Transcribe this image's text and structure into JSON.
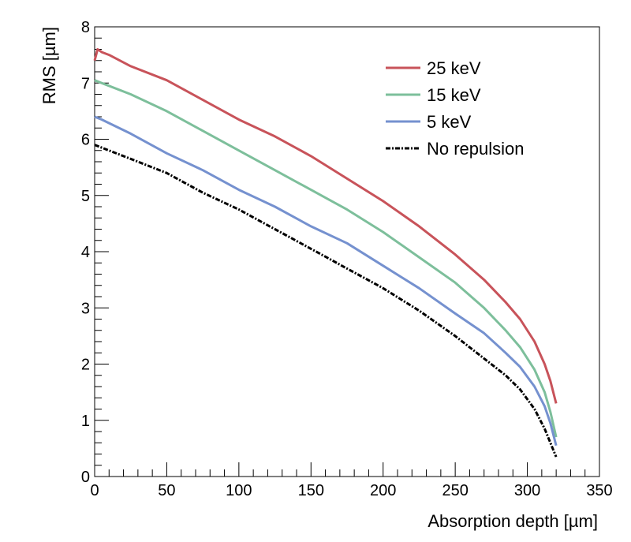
{
  "chart_data": {
    "type": "line",
    "title": "",
    "xlabel": "Absorption depth [µm]",
    "ylabel": "RMS [µm]",
    "xlim": [
      0,
      350
    ],
    "ylim": [
      0,
      8
    ],
    "xticks": [
      0,
      50,
      100,
      150,
      200,
      250,
      300,
      350
    ],
    "xtick_labels": [
      "0",
      "50",
      "100",
      "150",
      "200",
      "250",
      "300",
      "350"
    ],
    "yticks": [
      0,
      1,
      2,
      3,
      4,
      5,
      6,
      7,
      8
    ],
    "ytick_labels": [
      "0",
      "1",
      "2",
      "3",
      "4",
      "5",
      "6",
      "7",
      "8"
    ],
    "grid": false,
    "legend_position": "top-right",
    "series": [
      {
        "name": "25 keV",
        "color": "#c8535a",
        "style": "solid",
        "x": [
          0,
          2,
          5,
          10,
          25,
          50,
          75,
          100,
          125,
          150,
          175,
          200,
          225,
          250,
          270,
          285,
          295,
          305,
          312,
          316,
          320
        ],
        "y": [
          7.4,
          7.6,
          7.55,
          7.5,
          7.3,
          7.05,
          6.7,
          6.35,
          6.05,
          5.7,
          5.3,
          4.9,
          4.45,
          3.95,
          3.5,
          3.1,
          2.8,
          2.4,
          2.0,
          1.7,
          1.3
        ]
      },
      {
        "name": "15 keV",
        "color": "#7dbf9b",
        "style": "solid",
        "x": [
          0,
          5,
          25,
          50,
          75,
          100,
          125,
          150,
          175,
          200,
          225,
          250,
          270,
          285,
          295,
          305,
          312,
          316,
          320
        ],
        "y": [
          7.05,
          7.0,
          6.8,
          6.5,
          6.15,
          5.8,
          5.45,
          5.1,
          4.75,
          4.35,
          3.9,
          3.45,
          3.0,
          2.6,
          2.3,
          1.9,
          1.5,
          1.15,
          0.7
        ]
      },
      {
        "name": "5 keV",
        "color": "#7591cf",
        "style": "solid",
        "x": [
          0,
          5,
          25,
          50,
          75,
          100,
          125,
          150,
          175,
          200,
          225,
          250,
          270,
          285,
          295,
          305,
          312,
          316,
          320
        ],
        "y": [
          6.4,
          6.35,
          6.1,
          5.75,
          5.45,
          5.1,
          4.8,
          4.45,
          4.15,
          3.75,
          3.35,
          2.9,
          2.55,
          2.2,
          1.95,
          1.6,
          1.25,
          0.95,
          0.55
        ]
      },
      {
        "name": "No repulsion",
        "color": "#000000",
        "style": "dashdot",
        "x": [
          0,
          5,
          25,
          50,
          75,
          100,
          125,
          150,
          175,
          200,
          225,
          250,
          270,
          285,
          295,
          305,
          312,
          316,
          320
        ],
        "y": [
          5.9,
          5.85,
          5.65,
          5.4,
          5.05,
          4.75,
          4.4,
          4.05,
          3.7,
          3.35,
          2.95,
          2.5,
          2.1,
          1.8,
          1.55,
          1.2,
          0.85,
          0.6,
          0.35
        ]
      }
    ]
  }
}
